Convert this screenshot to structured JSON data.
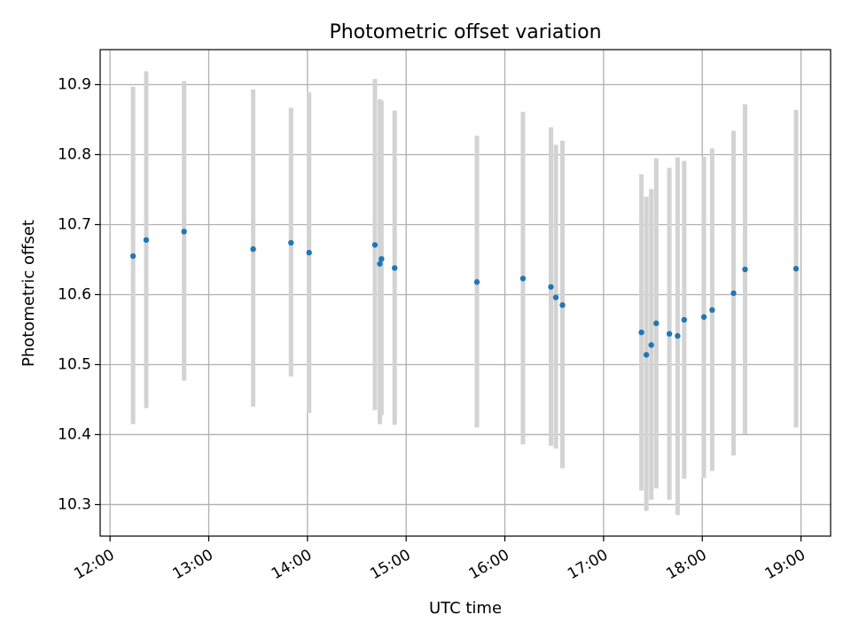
{
  "chart_data": {
    "type": "scatter",
    "title": "Photometric offset variation",
    "xlabel": "UTC time",
    "ylabel": "Photometric offset",
    "xlim": [
      "11:54",
      "19:18"
    ],
    "ylim": [
      10.255,
      10.95
    ],
    "x_ticks": [
      "12:00",
      "13:00",
      "14:00",
      "15:00",
      "16:00",
      "17:00",
      "18:00",
      "19:00"
    ],
    "y_ticks": [
      "10.3",
      "10.4",
      "10.5",
      "10.6",
      "10.7",
      "10.8",
      "10.9"
    ],
    "grid": true,
    "point_color": "#1f77b4",
    "errorbar_color": "#d3d3d3",
    "points": [
      {
        "x": "12:14",
        "y": 10.655,
        "ylow": 10.415,
        "yhigh": 10.897
      },
      {
        "x": "12:22",
        "y": 10.678,
        "ylow": 10.438,
        "yhigh": 10.919
      },
      {
        "x": "12:45",
        "y": 10.69,
        "ylow": 10.477,
        "yhigh": 10.905
      },
      {
        "x": "13:27",
        "y": 10.665,
        "ylow": 10.44,
        "yhigh": 10.893
      },
      {
        "x": "13:50",
        "y": 10.674,
        "ylow": 10.483,
        "yhigh": 10.867
      },
      {
        "x": "14:01",
        "y": 10.66,
        "ylow": 10.431,
        "yhigh": 10.889
      },
      {
        "x": "14:41",
        "y": 10.671,
        "ylow": 10.435,
        "yhigh": 10.908
      },
      {
        "x": "14:44",
        "y": 10.644,
        "ylow": 10.415,
        "yhigh": 10.879
      },
      {
        "x": "14:45",
        "y": 10.651,
        "ylow": 10.428,
        "yhigh": 10.877
      },
      {
        "x": "14:53",
        "y": 10.638,
        "ylow": 10.414,
        "yhigh": 10.863
      },
      {
        "x": "15:43",
        "y": 10.618,
        "ylow": 10.41,
        "yhigh": 10.827
      },
      {
        "x": "16:11",
        "y": 10.623,
        "ylow": 10.386,
        "yhigh": 10.861
      },
      {
        "x": "16:28",
        "y": 10.611,
        "ylow": 10.384,
        "yhigh": 10.839
      },
      {
        "x": "16:31",
        "y": 10.596,
        "ylow": 10.38,
        "yhigh": 10.814
      },
      {
        "x": "16:35",
        "y": 10.585,
        "ylow": 10.352,
        "yhigh": 10.82
      },
      {
        "x": "17:23",
        "y": 10.546,
        "ylow": 10.32,
        "yhigh": 10.772
      },
      {
        "x": "17:26",
        "y": 10.514,
        "ylow": 10.291,
        "yhigh": 10.74
      },
      {
        "x": "17:29",
        "y": 10.528,
        "ylow": 10.307,
        "yhigh": 10.751
      },
      {
        "x": "17:32",
        "y": 10.559,
        "ylow": 10.323,
        "yhigh": 10.795
      },
      {
        "x": "17:40",
        "y": 10.544,
        "ylow": 10.307,
        "yhigh": 10.781
      },
      {
        "x": "17:45",
        "y": 10.541,
        "ylow": 10.285,
        "yhigh": 10.796
      },
      {
        "x": "17:49",
        "y": 10.564,
        "ylow": 10.337,
        "yhigh": 10.791
      },
      {
        "x": "18:01",
        "y": 10.568,
        "ylow": 10.338,
        "yhigh": 10.797
      },
      {
        "x": "18:06",
        "y": 10.578,
        "ylow": 10.348,
        "yhigh": 10.809
      },
      {
        "x": "18:19",
        "y": 10.602,
        "ylow": 10.37,
        "yhigh": 10.834
      },
      {
        "x": "18:26",
        "y": 10.636,
        "ylow": 10.401,
        "yhigh": 10.872
      },
      {
        "x": "18:57",
        "y": 10.637,
        "ylow": 10.41,
        "yhigh": 10.864
      }
    ]
  }
}
